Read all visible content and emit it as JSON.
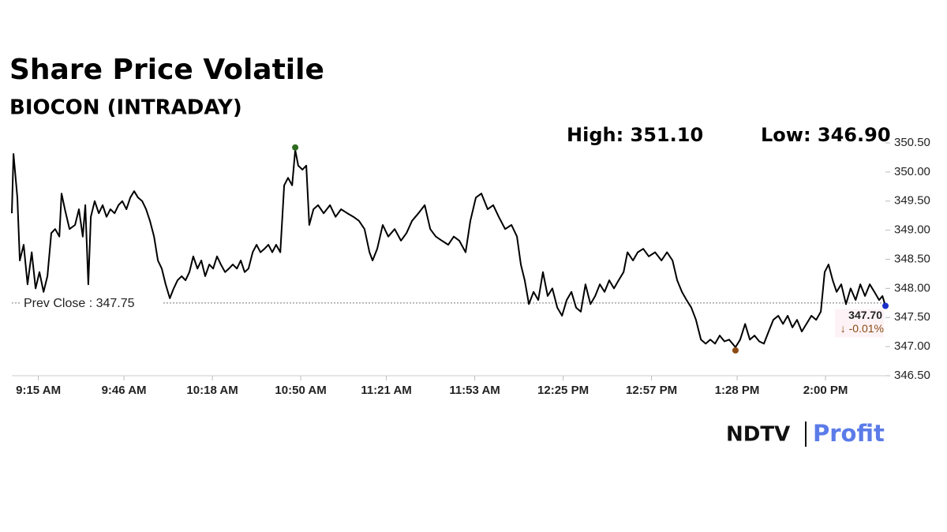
{
  "chart_data": {
    "type": "line",
    "title": "Share Price Volatile",
    "subtitle": "BIOCON (INTRADAY)",
    "high_label": "High: 351.10",
    "low_label": "Low: 346.90",
    "prev_close": 347.75,
    "prev_close_label": "Prev Close : 347.75",
    "last_label": "347.70",
    "change_label": "↓ -0.01%",
    "logo": [
      "NDTV",
      "Profit"
    ],
    "color": "#000000",
    "xlim": [
      -9.6,
      306.7
    ],
    "xticks": [
      {
        "value": 0,
        "label": "9:15 AM"
      },
      {
        "value": 31,
        "label": "9:46 AM"
      },
      {
        "value": 63,
        "label": "10:18 AM"
      },
      {
        "value": 95,
        "label": "10:50 AM"
      },
      {
        "value": 126,
        "label": "11:21 AM"
      },
      {
        "value": 158,
        "label": "11:53 AM"
      },
      {
        "value": 190,
        "label": "12:25 PM"
      },
      {
        "value": 222,
        "label": "12:57 PM"
      },
      {
        "value": 253,
        "label": "1:28 PM"
      },
      {
        "value": 285,
        "label": "2:00 PM"
      }
    ],
    "ylim": [
      346.5,
      350.5
    ],
    "yticks": [
      {
        "value": 346.5,
        "label": "346.50"
      },
      {
        "value": 347,
        "label": "347.00"
      },
      {
        "value": 347.5,
        "label": "347.50"
      },
      {
        "value": 348,
        "label": "348.00"
      },
      {
        "value": 348.5,
        "label": "348.50"
      },
      {
        "value": 349,
        "label": "349.00"
      },
      {
        "value": 349.5,
        "label": "349.50"
      },
      {
        "value": 350,
        "label": "350.00"
      },
      {
        "value": 350.5,
        "label": "350.50"
      }
    ],
    "x": [
      -9.6,
      -9.0,
      -7.6,
      -6.7,
      -5.3,
      -3.9,
      -2.4,
      -1.0,
      0.4,
      1.9,
      3.3,
      4.7,
      6.1,
      7.6,
      8.4,
      9.6,
      11.3,
      13.3,
      14.7,
      16.1,
      17.0,
      18.1,
      19.0,
      20.4,
      21.9,
      23.3,
      24.7,
      26.1,
      27.6,
      29.0,
      30.4,
      31.9,
      33.3,
      34.7,
      36.1,
      37.6,
      39.0,
      40.4,
      41.9,
      43.3,
      44.7,
      46.1,
      47.6,
      49.0,
      50.4,
      51.9,
      53.3,
      54.7,
      56.1,
      57.6,
      59.0,
      60.4,
      61.9,
      63.3,
      64.7,
      66.1,
      67.6,
      69.0,
      70.4,
      71.9,
      73.3,
      74.7,
      76.1,
      77.6,
      79.0,
      80.4,
      81.9,
      83.3,
      84.7,
      86.1,
      87.6,
      89.0,
      90.4,
      91.9,
      93.0,
      94.1,
      95.6,
      97.0,
      98.1,
      99.6,
      101.3,
      103.3,
      105.6,
      107.6,
      109.6,
      111.9,
      114.1,
      116.1,
      118.1,
      119.9,
      121.0,
      122.7,
      124.7,
      126.7,
      129.0,
      131.3,
      133.3,
      135.3,
      137.6,
      139.9,
      141.9,
      143.9,
      146.1,
      148.4,
      150.4,
      152.4,
      154.7,
      156.4,
      158.4,
      160.4,
      162.7,
      164.7,
      166.7,
      169.0,
      171.3,
      173.3,
      174.7,
      176.1,
      177.6,
      179.3,
      181.0,
      182.7,
      184.4,
      186.1,
      187.9,
      189.6,
      191.3,
      193.0,
      194.7,
      196.4,
      198.1,
      199.9,
      201.6,
      203.3,
      205.0,
      206.7,
      208.4,
      210.1,
      211.9,
      213.3,
      215.3,
      217.0,
      219.0,
      221.0,
      223.3,
      225.6,
      227.6,
      229.6,
      231.3,
      233.0,
      234.7,
      236.4,
      238.1,
      239.9,
      241.6,
      243.3,
      245.0,
      246.7,
      248.4,
      250.1,
      252.4,
      254.1,
      255.9,
      257.6,
      259.3,
      261.0,
      262.7,
      264.4,
      266.1,
      267.9,
      269.6,
      271.3,
      273.0,
      274.7,
      276.4,
      278.1,
      279.9,
      281.6,
      283.3,
      284.7,
      286.1,
      287.6,
      289.0,
      290.7,
      292.4,
      294.1,
      295.9,
      297.6,
      299.3,
      301.0,
      302.7,
      304.4,
      305.6,
      306.7
    ],
    "values": [
      349.29,
      350.31,
      349.56,
      348.48,
      348.75,
      348.07,
      348.62,
      348.0,
      348.28,
      347.94,
      348.21,
      348.95,
      349.02,
      348.89,
      349.63,
      349.36,
      349.02,
      349.09,
      349.36,
      348.89,
      349.43,
      348.07,
      349.23,
      349.5,
      349.29,
      349.43,
      349.23,
      349.36,
      349.29,
      349.43,
      349.5,
      349.36,
      349.56,
      349.67,
      349.56,
      349.5,
      349.36,
      349.16,
      348.89,
      348.48,
      348.34,
      348.07,
      347.83,
      348.0,
      348.14,
      348.21,
      348.14,
      348.28,
      348.55,
      348.34,
      348.48,
      348.21,
      348.41,
      348.34,
      348.55,
      348.41,
      348.28,
      348.34,
      348.41,
      348.34,
      348.48,
      348.28,
      348.34,
      348.62,
      348.75,
      348.62,
      348.68,
      348.75,
      348.62,
      348.75,
      348.62,
      349.77,
      349.9,
      349.77,
      350.38,
      350.11,
      350.04,
      350.11,
      349.09,
      349.36,
      349.43,
      349.29,
      349.43,
      349.23,
      349.36,
      349.29,
      349.23,
      349.16,
      349.02,
      348.62,
      348.48,
      348.68,
      349.09,
      348.89,
      349.02,
      348.82,
      348.95,
      349.16,
      349.29,
      349.43,
      349.02,
      348.89,
      348.82,
      348.75,
      348.89,
      348.82,
      348.62,
      349.16,
      349.56,
      349.63,
      349.36,
      349.43,
      349.23,
      349.02,
      349.09,
      348.89,
      348.41,
      348.14,
      347.73,
      347.94,
      347.8,
      348.28,
      347.87,
      348.0,
      347.67,
      347.53,
      347.8,
      347.94,
      347.67,
      347.6,
      348.07,
      347.73,
      347.87,
      348.07,
      347.94,
      348.14,
      348.0,
      348.14,
      348.28,
      348.62,
      348.48,
      348.62,
      348.68,
      348.55,
      348.62,
      348.48,
      348.62,
      348.48,
      348.14,
      347.94,
      347.8,
      347.67,
      347.46,
      347.12,
      347.05,
      347.12,
      347.05,
      347.19,
      347.09,
      347.12,
      346.99,
      347.12,
      347.39,
      347.12,
      347.19,
      347.09,
      347.05,
      347.26,
      347.46,
      347.53,
      347.39,
      347.53,
      347.33,
      347.46,
      347.26,
      347.39,
      347.53,
      347.46,
      347.6,
      348.28,
      348.41,
      348.14,
      347.94,
      348.07,
      347.73,
      348.0,
      347.8,
      348.07,
      347.87,
      348.07,
      347.94,
      347.8,
      347.87,
      347.7
    ]
  }
}
